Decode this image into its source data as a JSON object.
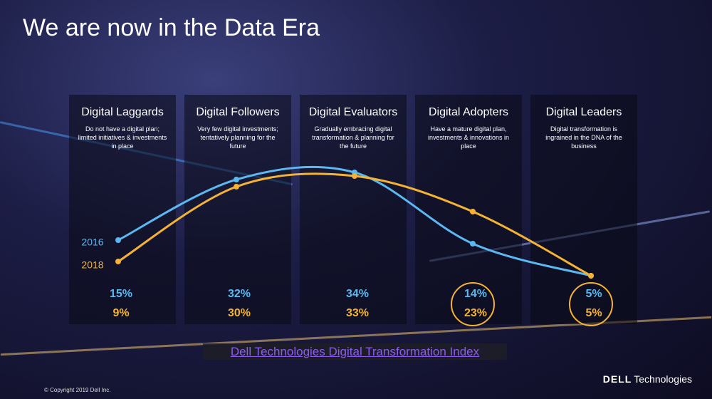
{
  "chart_data": {
    "type": "line",
    "title": "We are now in the Data Era",
    "categories": [
      "Digital Laggards",
      "Digital Followers",
      "Digital Evaluators",
      "Digital Adopters",
      "Digital Leaders"
    ],
    "descriptions": [
      "Do not have a digital plan; limited initiatives & investments in place",
      "Very few digital investments; tentatively planning for the future",
      "Gradually embracing digital transformation & planning for the future",
      "Have a mature digital plan, investments & innovations in place",
      "Digital transformation is ingrained in the DNA of the business"
    ],
    "series": [
      {
        "name": "2016",
        "color": "#5cb8f0",
        "values": [
          15,
          32,
          34,
          14,
          5
        ],
        "value_labels": [
          "15%",
          "32%",
          "34%",
          "14%",
          "5%"
        ]
      },
      {
        "name": "2018",
        "color": "#f5b335",
        "values": [
          9,
          30,
          33,
          23,
          5
        ],
        "value_labels": [
          "9%",
          "30%",
          "33%",
          "23%",
          "5%"
        ]
      }
    ],
    "source": "Dell Technologies Digital Transformation Index",
    "copyright": "© Copyright 2019 Dell Inc.",
    "brand": "DELL",
    "brand_suffix": "Technologies"
  }
}
